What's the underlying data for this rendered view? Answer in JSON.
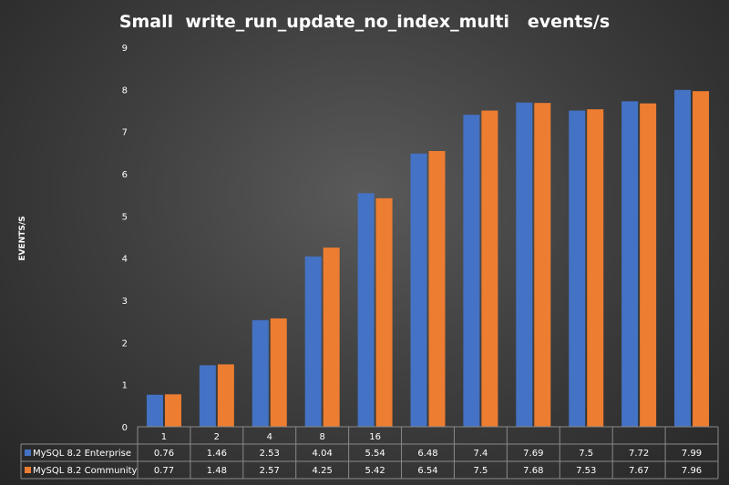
{
  "chart_data": {
    "type": "bar",
    "title": "Small  write_run_update_no_index_multi   events/s",
    "ylabel": "EVENTS/S",
    "xlabel": "",
    "ylim": [
      0,
      9
    ],
    "yticks": [
      0,
      1,
      2,
      3,
      4,
      5,
      6,
      7,
      8,
      9
    ],
    "grid": false,
    "legend": "data-table-left",
    "categories": [
      "1",
      "2",
      "4",
      "8",
      "16",
      "",
      "",
      "",
      "",
      "",
      ""
    ],
    "series": [
      {
        "name": "MySQL 8.2 Enterprise",
        "color": "#4472c4",
        "values": [
          0.76,
          1.46,
          2.53,
          4.04,
          5.54,
          6.48,
          7.4,
          7.69,
          7.5,
          7.72,
          7.99
        ],
        "labels": [
          "0.76",
          "1.46",
          "2.53",
          "4.04",
          "5.54",
          "6.48",
          "7.4",
          "7.69",
          "7.5",
          "7.72",
          "7.99"
        ]
      },
      {
        "name": "MySQL 8.2 Community",
        "color": "#ed7d31",
        "values": [
          0.77,
          1.48,
          2.57,
          4.25,
          5.42,
          6.54,
          7.5,
          7.68,
          7.53,
          7.67,
          7.96
        ],
        "labels": [
          "0.77",
          "1.48",
          "2.57",
          "4.25",
          "5.42",
          "6.54",
          "7.5",
          "7.68",
          "7.53",
          "7.67",
          "7.96"
        ]
      }
    ]
  }
}
